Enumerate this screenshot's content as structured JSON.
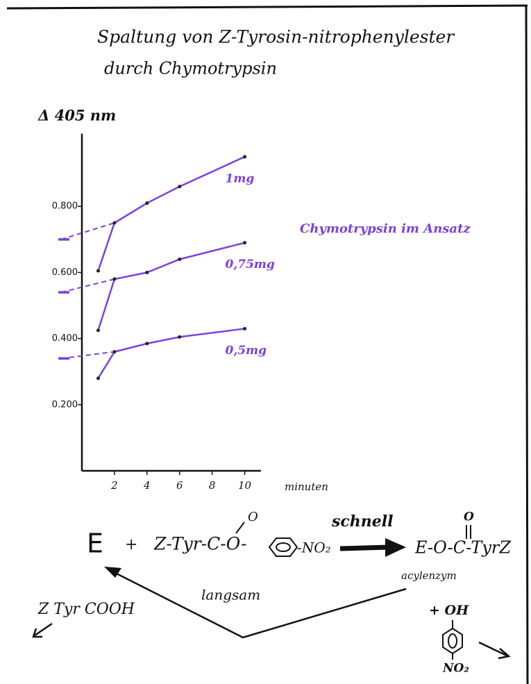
{
  "chart_data": {
    "type": "line",
    "title": "Spaltung von Z-Tyrosin-nitrophenylester",
    "subtitle": "durch Chymotrypsin",
    "y_label": "Δ 405 nm",
    "x_label": "minuten",
    "legend_title": "Chymotrypsin im Ansatz",
    "x": [
      1,
      2,
      4,
      6,
      10
    ],
    "series": [
      {
        "name": "1mg",
        "color": "#7b3fe0",
        "values": [
          0.605,
          0.75,
          0.81,
          0.86,
          0.95
        ],
        "intercept": 0.7
      },
      {
        "name": "0,75mg",
        "color": "#7b3fe0",
        "values": [
          0.425,
          0.58,
          0.6,
          0.64,
          0.69
        ],
        "intercept": 0.54
      },
      {
        "name": "0,5mg",
        "color": "#7b3fe0",
        "values": [
          0.28,
          0.36,
          0.385,
          0.405,
          0.43
        ],
        "intercept": 0.34
      }
    ],
    "xlim": [
      0,
      11
    ],
    "ylim": [
      0,
      1.02
    ],
    "xticks": [
      2,
      4,
      6,
      8,
      10
    ],
    "yticks": [
      {
        "value": 0.2,
        "label": "0.200"
      },
      {
        "value": 0.4,
        "label": "0.400"
      },
      {
        "value": 0.6,
        "label": "0.600"
      },
      {
        "value": 0.8,
        "label": "0.800"
      }
    ]
  },
  "scheme": {
    "enzyme": "E",
    "plus": "+",
    "substrate": "Z-Tyr-C-O-",
    "carbonyl_o": "O",
    "leaving": "-NO₂",
    "fast": "schnell",
    "product": "E-O-C-TyrZ",
    "product_o": "O",
    "product_name": "acylenzym",
    "slow": "langsam",
    "acid": "Z Tyr COOH",
    "phenol_plus": "+ OH",
    "phenol_no2": "NO₂"
  }
}
